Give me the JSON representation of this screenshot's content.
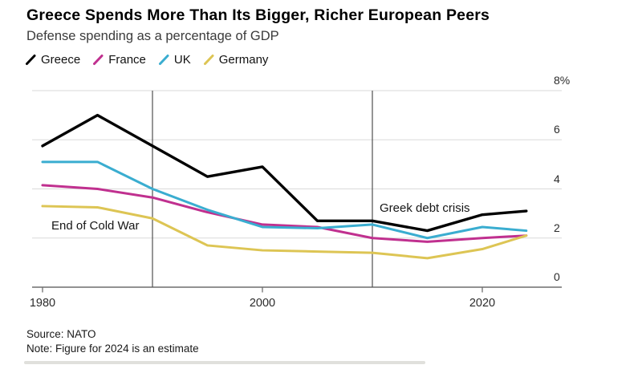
{
  "header": {
    "title": "Greece Spends More Than Its Bigger, Richer European Peers",
    "subtitle": "Defense spending as a percentage of GDP"
  },
  "legend": [
    {
      "label": "Greece",
      "color": "#000000"
    },
    {
      "label": "France",
      "color": "#c0308f"
    },
    {
      "label": "UK",
      "color": "#3aadd0"
    },
    {
      "label": "Germany",
      "color": "#ddc554"
    }
  ],
  "chart_data": {
    "type": "line",
    "title": "Greece Spends More Than Its Bigger, Richer European Peers",
    "subtitle": "Defense spending as a percentage of GDP",
    "xlabel": "",
    "ylabel": "Defense spending, % of GDP",
    "ylim": [
      0,
      8
    ],
    "xlim": [
      1980,
      2024
    ],
    "grid": "horizontal",
    "legend_position": "top-left",
    "x": [
      1980,
      1985,
      1990,
      1995,
      2000,
      2005,
      2010,
      2015,
      2020,
      2024
    ],
    "series": [
      {
        "name": "Greece",
        "color": "#000000",
        "width": 3.4,
        "values": [
          5.75,
          7.0,
          5.75,
          4.5,
          4.9,
          2.7,
          2.7,
          2.3,
          2.95,
          3.1
        ]
      },
      {
        "name": "France",
        "color": "#c0308f",
        "width": 3,
        "values": [
          4.15,
          4.0,
          3.65,
          3.05,
          2.55,
          2.45,
          2.0,
          1.85,
          2.0,
          2.1
        ]
      },
      {
        "name": "UK",
        "color": "#3aadd0",
        "width": 3,
        "values": [
          5.1,
          5.1,
          4.0,
          3.15,
          2.45,
          2.4,
          2.55,
          2.0,
          2.45,
          2.3
        ]
      },
      {
        "name": "Germany",
        "color": "#ddc554",
        "width": 3,
        "values": [
          3.3,
          3.25,
          2.8,
          1.7,
          1.5,
          1.45,
          1.4,
          1.18,
          1.55,
          2.1
        ]
      }
    ],
    "y_ticks": [
      {
        "value": 0,
        "label": "0"
      },
      {
        "value": 2,
        "label": "2"
      },
      {
        "value": 4,
        "label": "4"
      },
      {
        "value": 6,
        "label": "6"
      },
      {
        "value": 8,
        "label": "8%"
      }
    ],
    "x_ticks": [
      {
        "value": 1980,
        "label": "1980"
      },
      {
        "value": 2000,
        "label": "2000"
      },
      {
        "value": 2020,
        "label": "2020"
      }
    ],
    "annotations": [
      {
        "label": "End of Cold War",
        "year": 1990,
        "side": "left"
      },
      {
        "label": "Greek debt crisis",
        "year": 2010,
        "side": "right"
      }
    ]
  },
  "footer": {
    "source": "Source: NATO",
    "note": "Note: Figure for 2024 is an estimate"
  },
  "colors": {
    "gridline": "#dadada",
    "axis": "#6e6e6e",
    "event_line": "#4f4f4f",
    "tick_label": "#2b2b2b"
  }
}
